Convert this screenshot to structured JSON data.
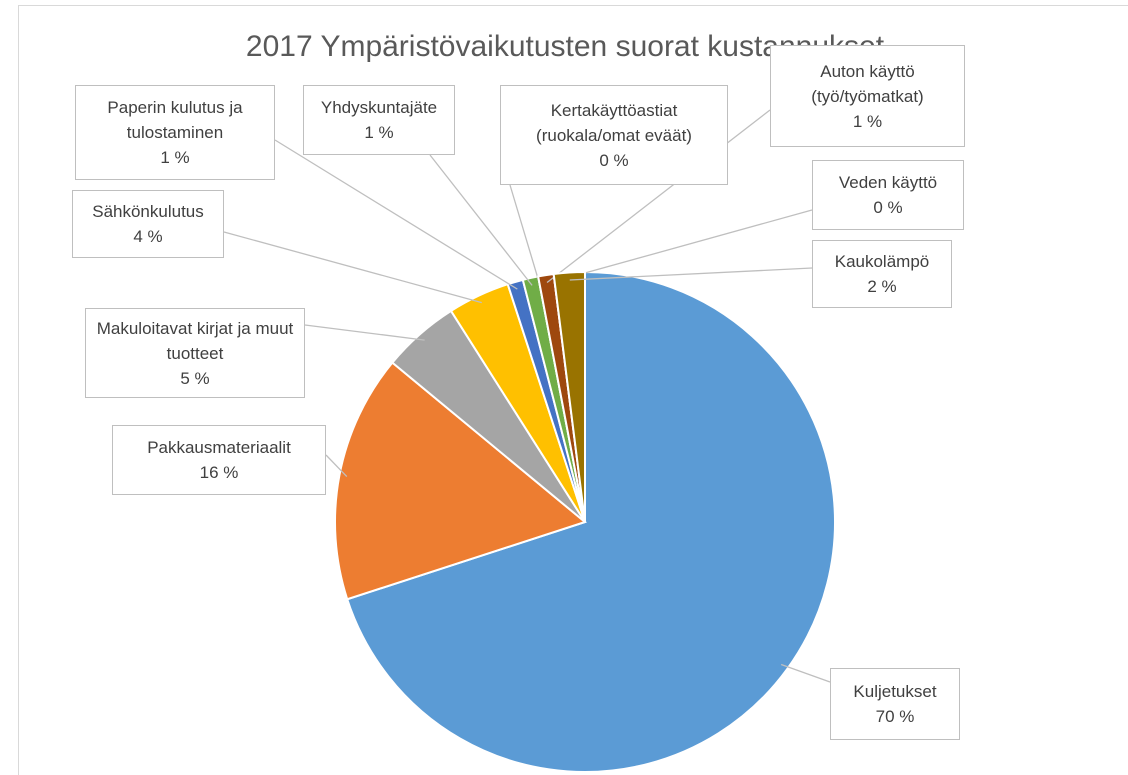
{
  "chart_data": {
    "type": "pie",
    "title": "2017 Ympäristövaikutusten suorat kustannukset",
    "categories": [
      "Kuljetukset",
      "Pakkausmateriaalit",
      "Makuloitavat kirjat ja muut tuotteet",
      "Sähkönkulutus",
      "Paperin kulutus ja tulostaminen",
      "Yhdyskuntajäte",
      "Kertakäyttöastiat (ruokala/omat eväät)",
      "Auton käyttö (työ/työmatkat)",
      "Veden käyttö",
      "Kaukolämpö"
    ],
    "values": [
      70,
      16,
      5,
      4,
      1,
      1,
      0,
      1,
      0,
      2
    ],
    "value_labels": [
      "70 %",
      "16 %",
      "5 %",
      "4 %",
      "1 %",
      "1 %",
      "0 %",
      "1 %",
      "0 %",
      "2 %"
    ],
    "colors": [
      "#5b9bd5",
      "#ed7d31",
      "#a5a5a5",
      "#ffc000",
      "#4472c4",
      "#70ad47",
      "#264478",
      "#9e480e",
      "#636363",
      "#997300"
    ]
  }
}
